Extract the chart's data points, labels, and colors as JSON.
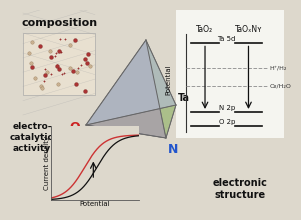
{
  "bg_color": "#ddd8cc",
  "white_panel": "#ffffff",
  "title_composition": "composition",
  "title_electro": "electro-\ncatalytic\nactivity",
  "title_electronic": "electronic\nstructure",
  "label_O": "O",
  "label_N": "N",
  "label_Ta": "Ta",
  "label_TaO2": "TaO₂",
  "label_TaOxNy": "TaOₓNʏ",
  "label_HH2": "H⁺/H₂",
  "label_O2H2O": "O₂/H₂O",
  "label_Ta5d": "Ta 5d",
  "label_N2p": "N 2p",
  "label_O2p": "O 2p",
  "label_potential": "Potential",
  "label_current": "Current density",
  "line1_color": "#cc3333",
  "line2_color": "#111111",
  "arrow_color": "#111111",
  "dashed_color": "#999999",
  "O_color": "#cc2222",
  "N_color": "#2255cc",
  "Ta_color": "#111111",
  "crystal_red": "#aa3333",
  "crystal_tan": "#c8b090",
  "crystal_line": "#888877",
  "tetra_gray": "#b0b8c0",
  "tetra_blue": "#9090b8",
  "tetra_green": "#90b890",
  "tetra_yellow": "#d4c870",
  "tetra_purple": "#c0a0c8",
  "tetra_edge": "#666666"
}
